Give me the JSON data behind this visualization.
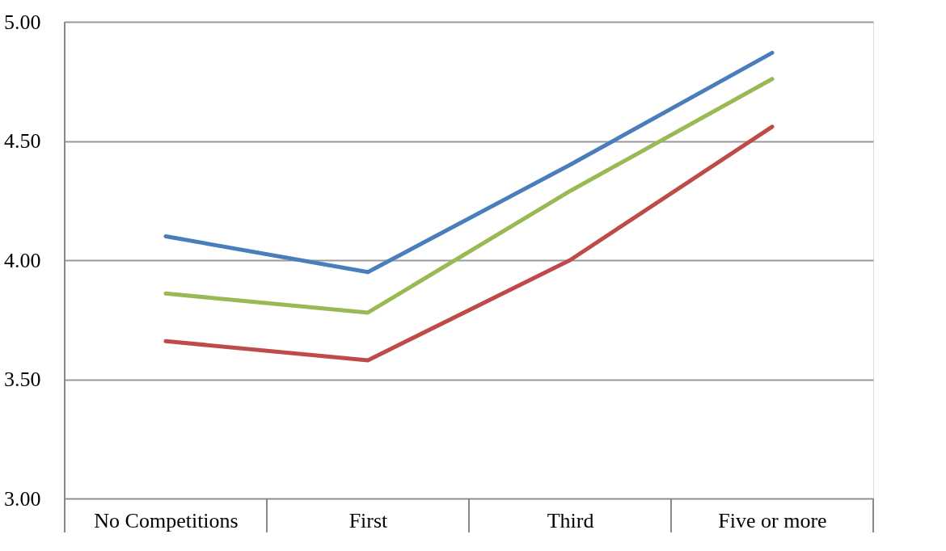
{
  "chart_data": {
    "type": "line",
    "categories": [
      "No Competitions",
      "First",
      "Third",
      "Five or more"
    ],
    "series": [
      {
        "color": "#4a7ebb",
        "values": [
          4.1,
          3.95,
          4.4,
          4.87
        ]
      },
      {
        "color": "#98b954",
        "values": [
          3.86,
          3.78,
          4.29,
          4.76
        ]
      },
      {
        "color": "#be4b48",
        "values": [
          3.66,
          3.58,
          4.0,
          4.56
        ]
      }
    ],
    "ylim": [
      3.0,
      5.0
    ],
    "yticks": [
      {
        "value": 3.0,
        "label": "3.00"
      },
      {
        "value": 3.5,
        "label": "3.50"
      },
      {
        "value": 4.0,
        "label": "4.00"
      },
      {
        "value": 4.5,
        "label": "4.50"
      },
      {
        "value": 5.0,
        "label": "5.00"
      }
    ],
    "grid": "y",
    "legend": false,
    "marker": "none",
    "line_style": "solid"
  }
}
